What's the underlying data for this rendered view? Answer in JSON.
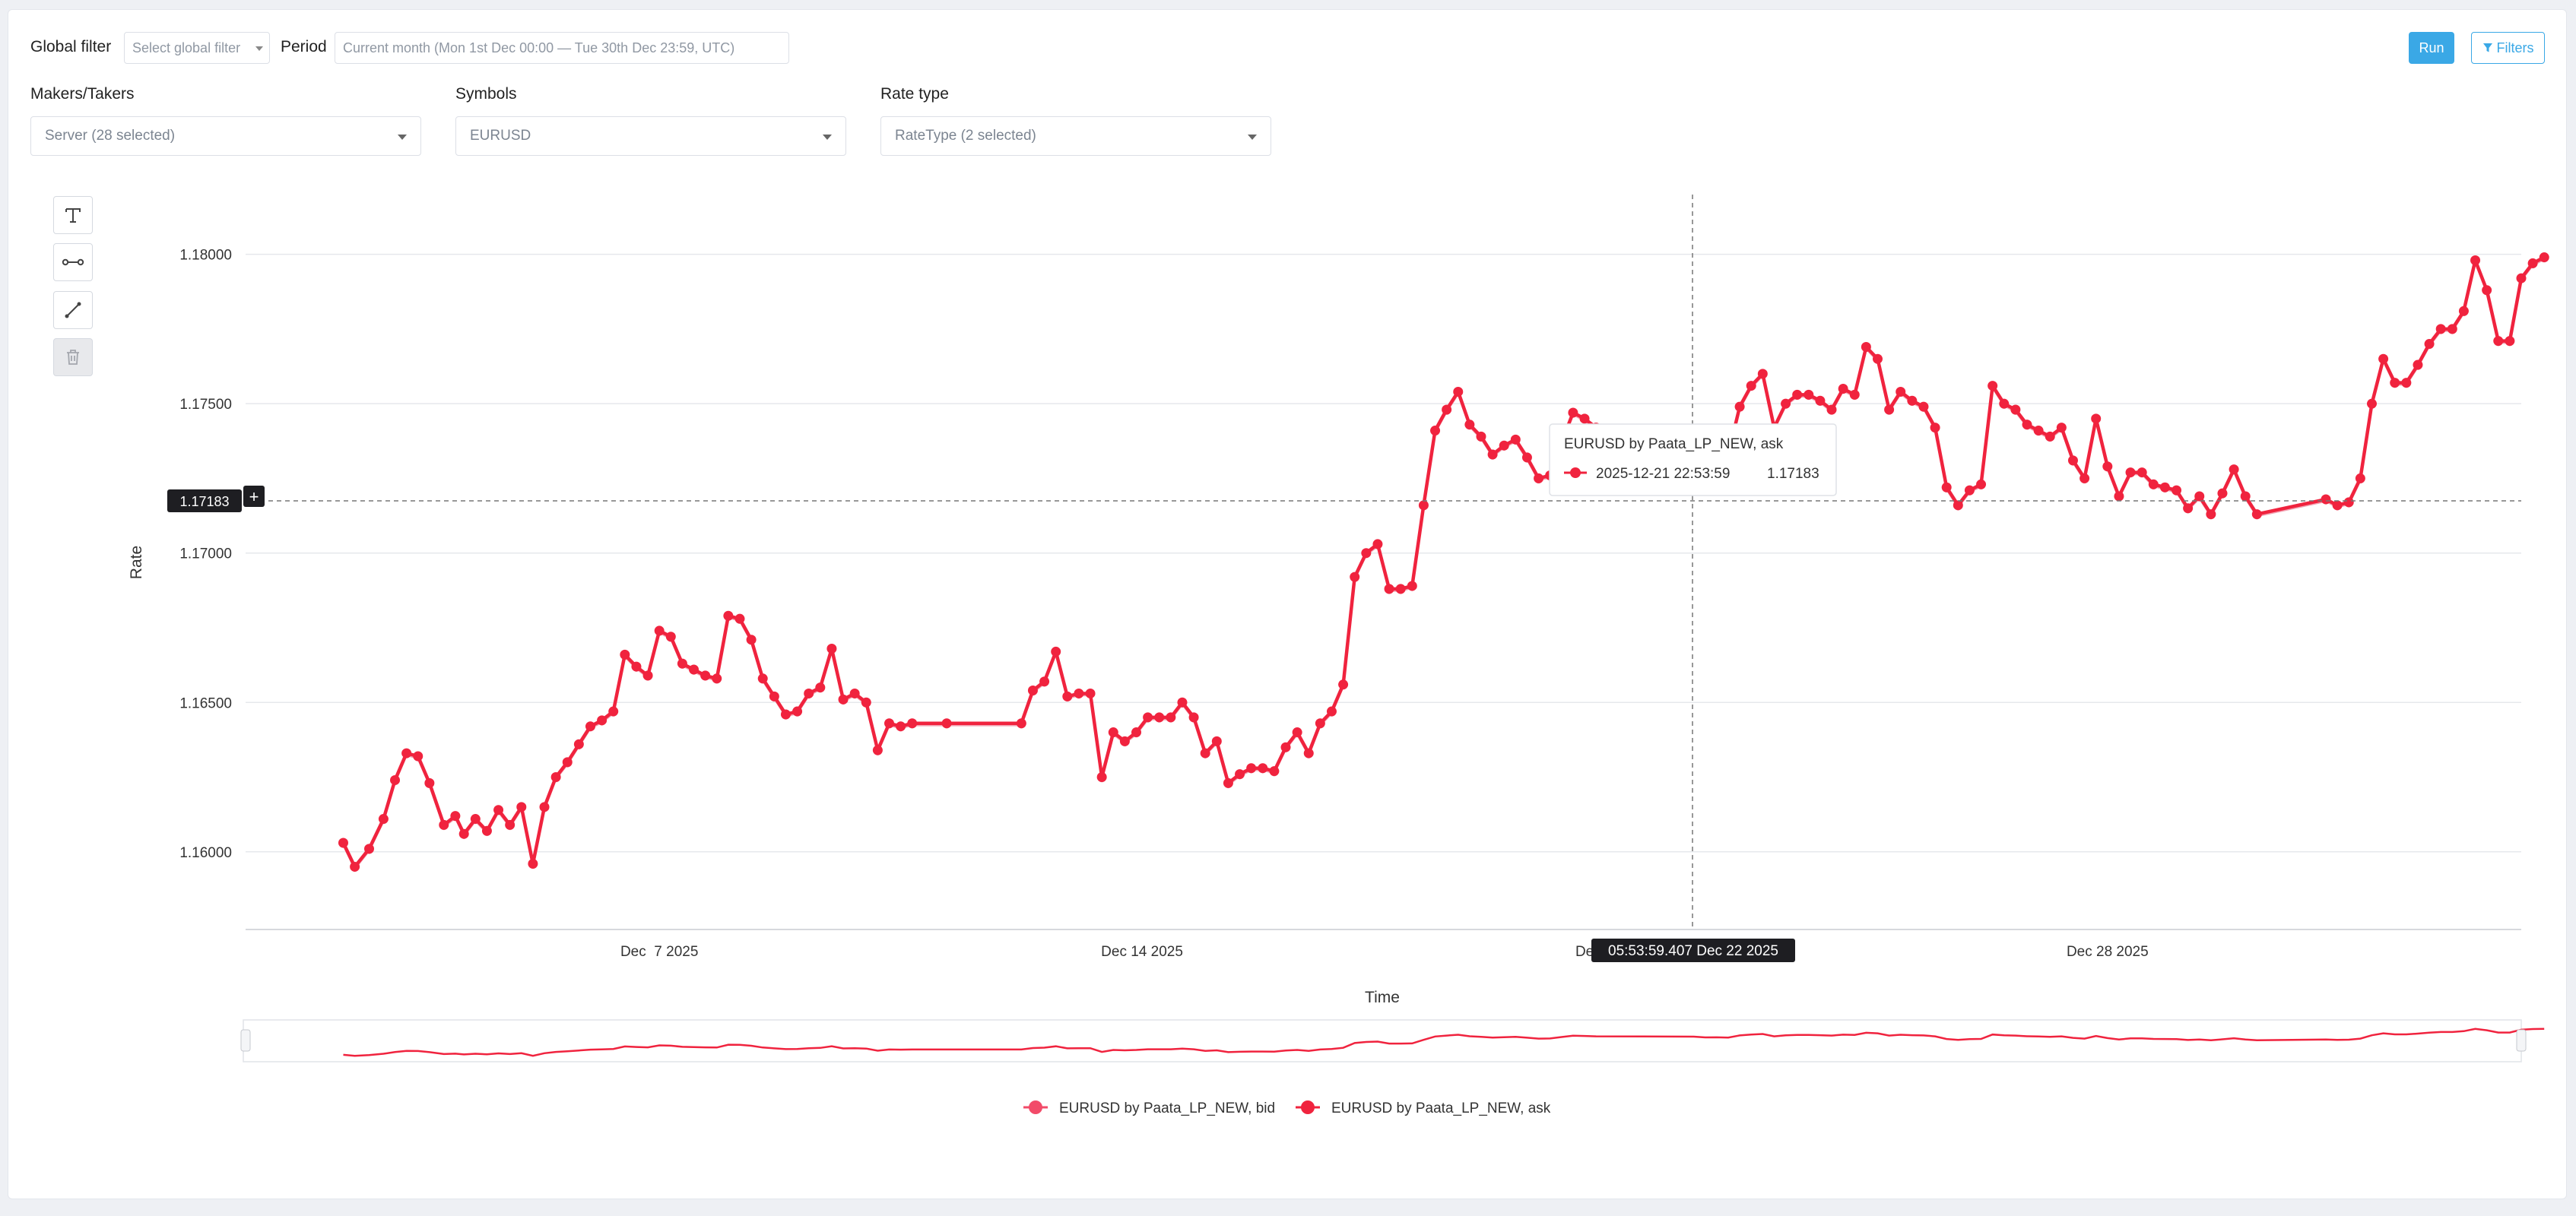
{
  "filters": {
    "global_filter_label": "Global filter",
    "global_filter_placeholder": "Select global filter",
    "period_label": "Period",
    "period_value": "Current month (Mon 1st Dec 00:00 — Tue 30th Dec 23:59, UTC)"
  },
  "actions": {
    "run_label": "Run",
    "filters_label": "Filters"
  },
  "selectors": [
    {
      "label": "Makers/Takers",
      "value": "Server (28 selected)"
    },
    {
      "label": "Symbols",
      "value": "EURUSD"
    },
    {
      "label": "Rate type",
      "value": "RateType (2 selected)"
    }
  ],
  "toolbar": [
    "text-tool-icon",
    "line-segment-icon",
    "arrow-line-icon",
    "trash-icon"
  ],
  "crosshair": {
    "y_value_label": "1.17183",
    "x_value_label": "05:53:59.407 Dec 22 2025",
    "plus_label": "+"
  },
  "tooltip": {
    "title": "EURUSD by Paata_LP_NEW, ask",
    "time": "2025-12-21 22:53:59",
    "value": "1.17183"
  },
  "chart_data": {
    "type": "line",
    "xlabel": "Time",
    "ylabel": "Rate",
    "x_ticks": [
      "Dec  7 2025",
      "Dec 14 2025",
      "Dec",
      "Dec 28 2025"
    ],
    "y_ticks": [
      "1.16000",
      "1.16500",
      "1.17000",
      "1.17500",
      "1.18000"
    ],
    "ylim": [
      1.1574,
      1.182
    ],
    "xlim": [
      "2025-12-01",
      "2026-01-03"
    ],
    "legend": [
      "EURUSD by Paata_LP_NEW, bid",
      "EURUSD by Paata_LP_NEW, ask"
    ],
    "legend_position": "bottom",
    "grid": "horizontal",
    "colors": {
      "bid": "#f2a3b3",
      "ask": "#f0233e",
      "bid_legend": "#f24b69"
    },
    "series": [
      {
        "name": "EURUSD by Paata_LP_NEW, ask",
        "points": [
          [
            "2025-12-02 10:00",
            1.1603
          ],
          [
            "2025-12-02 14:00",
            1.1595
          ],
          [
            "2025-12-02 19:00",
            1.1601
          ],
          [
            "2025-12-03 00:00",
            1.1611
          ],
          [
            "2025-12-03 04:00",
            1.1624
          ],
          [
            "2025-12-03 08:00",
            1.1633
          ],
          [
            "2025-12-03 12:00",
            1.1632
          ],
          [
            "2025-12-03 16:00",
            1.1623
          ],
          [
            "2025-12-03 21:00",
            1.1609
          ],
          [
            "2025-12-04 01:00",
            1.1612
          ],
          [
            "2025-12-04 04:00",
            1.1606
          ],
          [
            "2025-12-04 08:00",
            1.1611
          ],
          [
            "2025-12-04 12:00",
            1.1607
          ],
          [
            "2025-12-04 16:00",
            1.1614
          ],
          [
            "2025-12-04 20:00",
            1.1609
          ],
          [
            "2025-12-05 00:00",
            1.1615
          ],
          [
            "2025-12-05 04:00",
            1.1596
          ],
          [
            "2025-12-05 08:00",
            1.1615
          ],
          [
            "2025-12-05 12:00",
            1.1625
          ],
          [
            "2025-12-05 16:00",
            1.163
          ],
          [
            "2025-12-05 20:00",
            1.1636
          ],
          [
            "2025-12-06 00:00",
            1.1642
          ],
          [
            "2025-12-06 04:00",
            1.1644
          ],
          [
            "2025-12-06 08:00",
            1.1647
          ],
          [
            "2025-12-06 12:00",
            1.1666
          ],
          [
            "2025-12-06 16:00",
            1.1662
          ],
          [
            "2025-12-06 20:00",
            1.1659
          ],
          [
            "2025-12-07 00:00",
            1.1674
          ],
          [
            "2025-12-07 04:00",
            1.1672
          ],
          [
            "2025-12-07 08:00",
            1.1663
          ],
          [
            "2025-12-07 12:00",
            1.1661
          ],
          [
            "2025-12-07 16:00",
            1.1659
          ],
          [
            "2025-12-07 20:00",
            1.1658
          ],
          [
            "2025-12-08 00:00",
            1.1679
          ],
          [
            "2025-12-08 04:00",
            1.1678
          ],
          [
            "2025-12-08 08:00",
            1.1671
          ],
          [
            "2025-12-08 12:00",
            1.1658
          ],
          [
            "2025-12-08 16:00",
            1.1652
          ],
          [
            "2025-12-08 20:00",
            1.1646
          ],
          [
            "2025-12-09 00:00",
            1.1647
          ],
          [
            "2025-12-09 04:00",
            1.1653
          ],
          [
            "2025-12-09 08:00",
            1.1655
          ],
          [
            "2025-12-09 12:00",
            1.1668
          ],
          [
            "2025-12-09 16:00",
            1.1651
          ],
          [
            "2025-12-09 20:00",
            1.1653
          ],
          [
            "2025-12-10 00:00",
            1.165
          ],
          [
            "2025-12-10 04:00",
            1.1634
          ],
          [
            "2025-12-10 08:00",
            1.1643
          ],
          [
            "2025-12-10 12:00",
            1.1642
          ],
          [
            "2025-12-10 16:00",
            1.1643
          ],
          [
            "2025-12-11 04:00",
            1.1643
          ],
          [
            "2025-12-12 06:00",
            1.1643
          ],
          [
            "2025-12-12 10:00",
            1.1654
          ],
          [
            "2025-12-12 14:00",
            1.1657
          ],
          [
            "2025-12-12 18:00",
            1.1667
          ],
          [
            "2025-12-12 22:00",
            1.1652
          ],
          [
            "2025-12-13 02:00",
            1.1653
          ],
          [
            "2025-12-13 06:00",
            1.1653
          ],
          [
            "2025-12-13 10:00",
            1.1625
          ],
          [
            "2025-12-13 14:00",
            1.164
          ],
          [
            "2025-12-13 18:00",
            1.1637
          ],
          [
            "2025-12-13 22:00",
            1.164
          ],
          [
            "2025-12-14 02:00",
            1.1645
          ],
          [
            "2025-12-14 06:00",
            1.1645
          ],
          [
            "2025-12-14 10:00",
            1.1645
          ],
          [
            "2025-12-14 14:00",
            1.165
          ],
          [
            "2025-12-14 18:00",
            1.1645
          ],
          [
            "2025-12-14 22:00",
            1.1633
          ],
          [
            "2025-12-15 02:00",
            1.1637
          ],
          [
            "2025-12-15 06:00",
            1.1623
          ],
          [
            "2025-12-15 10:00",
            1.1626
          ],
          [
            "2025-12-15 14:00",
            1.1628
          ],
          [
            "2025-12-15 18:00",
            1.1628
          ],
          [
            "2025-12-15 22:00",
            1.1627
          ],
          [
            "2025-12-16 02:00",
            1.1635
          ],
          [
            "2025-12-16 06:00",
            1.164
          ],
          [
            "2025-12-16 10:00",
            1.1633
          ],
          [
            "2025-12-16 14:00",
            1.1643
          ],
          [
            "2025-12-16 18:00",
            1.1647
          ],
          [
            "2025-12-16 22:00",
            1.1656
          ],
          [
            "2025-12-17 02:00",
            1.1692
          ],
          [
            "2025-12-17 06:00",
            1.17
          ],
          [
            "2025-12-17 10:00",
            1.1703
          ],
          [
            "2025-12-17 14:00",
            1.1688
          ],
          [
            "2025-12-17 18:00",
            1.1688
          ],
          [
            "2025-12-17 22:00",
            1.1689
          ],
          [
            "2025-12-18 02:00",
            1.1716
          ],
          [
            "2025-12-18 06:00",
            1.1741
          ],
          [
            "2025-12-18 10:00",
            1.1748
          ],
          [
            "2025-12-18 14:00",
            1.1754
          ],
          [
            "2025-12-18 18:00",
            1.1743
          ],
          [
            "2025-12-18 22:00",
            1.1739
          ],
          [
            "2025-12-19 02:00",
            1.1733
          ],
          [
            "2025-12-19 06:00",
            1.1736
          ],
          [
            "2025-12-19 10:00",
            1.1738
          ],
          [
            "2025-12-19 14:00",
            1.1732
          ],
          [
            "2025-12-19 18:00",
            1.1725
          ],
          [
            "2025-12-19 22:00",
            1.1726
          ],
          [
            "2025-12-20 02:00",
            1.1737
          ],
          [
            "2025-12-20 06:00",
            1.1747
          ],
          [
            "2025-12-20 10:00",
            1.1745
          ],
          [
            "2025-12-20 14:00",
            1.1742
          ],
          [
            "2025-12-22 00:00",
            1.174
          ],
          [
            "2025-12-22 04:00",
            1.1734
          ],
          [
            "2025-12-22 08:00",
            1.1735
          ],
          [
            "2025-12-22 12:00",
            1.1733
          ],
          [
            "2025-12-22 16:00",
            1.1749
          ],
          [
            "2025-12-22 20:00",
            1.1756
          ],
          [
            "2025-12-23 00:00",
            1.176
          ],
          [
            "2025-12-23 04:00",
            1.1742
          ],
          [
            "2025-12-23 08:00",
            1.175
          ],
          [
            "2025-12-23 12:00",
            1.1753
          ],
          [
            "2025-12-23 16:00",
            1.1753
          ],
          [
            "2025-12-23 20:00",
            1.1751
          ],
          [
            "2025-12-24 00:00",
            1.1748
          ],
          [
            "2025-12-24 04:00",
            1.1755
          ],
          [
            "2025-12-24 08:00",
            1.1753
          ],
          [
            "2025-12-24 12:00",
            1.1769
          ],
          [
            "2025-12-24 16:00",
            1.1765
          ],
          [
            "2025-12-24 20:00",
            1.1748
          ],
          [
            "2025-12-25 00:00",
            1.1754
          ],
          [
            "2025-12-25 04:00",
            1.1751
          ],
          [
            "2025-12-25 08:00",
            1.1749
          ],
          [
            "2025-12-25 12:00",
            1.1742
          ],
          [
            "2025-12-25 16:00",
            1.1722
          ],
          [
            "2025-12-25 20:00",
            1.1716
          ],
          [
            "2025-12-26 00:00",
            1.1721
          ],
          [
            "2025-12-26 04:00",
            1.1723
          ],
          [
            "2025-12-26 08:00",
            1.1756
          ],
          [
            "2025-12-26 12:00",
            1.175
          ],
          [
            "2025-12-26 16:00",
            1.1748
          ],
          [
            "2025-12-26 20:00",
            1.1743
          ],
          [
            "2025-12-27 00:00",
            1.1741
          ],
          [
            "2025-12-27 04:00",
            1.1739
          ],
          [
            "2025-12-27 08:00",
            1.1742
          ],
          [
            "2025-12-27 12:00",
            1.1731
          ],
          [
            "2025-12-27 16:00",
            1.1725
          ],
          [
            "2025-12-27 20:00",
            1.1745
          ],
          [
            "2025-12-28 00:00",
            1.1729
          ],
          [
            "2025-12-28 04:00",
            1.1719
          ],
          [
            "2025-12-28 08:00",
            1.1727
          ],
          [
            "2025-12-28 12:00",
            1.1727
          ],
          [
            "2025-12-28 16:00",
            1.1723
          ],
          [
            "2025-12-28 20:00",
            1.1722
          ],
          [
            "2025-12-29 00:00",
            1.1721
          ],
          [
            "2025-12-29 04:00",
            1.1715
          ],
          [
            "2025-12-29 08:00",
            1.1719
          ],
          [
            "2025-12-29 12:00",
            1.1713
          ],
          [
            "2025-12-29 16:00",
            1.172
          ],
          [
            "2025-12-29 20:00",
            1.1728
          ],
          [
            "2025-12-30 00:00",
            1.1719
          ],
          [
            "2025-12-30 04:00",
            1.1713
          ],
          [
            "2025-12-31 04:00",
            1.1718
          ],
          [
            "2025-12-31 08:00",
            1.1716
          ],
          [
            "2025-12-31 12:00",
            1.1717
          ],
          [
            "2025-12-31 16:00",
            1.1725
          ],
          [
            "2025-12-31 20:00",
            1.175
          ],
          [
            "2026-01-01 00:00",
            1.1765
          ],
          [
            "2026-01-01 04:00",
            1.1757
          ],
          [
            "2026-01-01 08:00",
            1.1757
          ],
          [
            "2026-01-01 12:00",
            1.1763
          ],
          [
            "2026-01-01 16:00",
            1.177
          ],
          [
            "2026-01-01 20:00",
            1.1775
          ],
          [
            "2026-01-02 00:00",
            1.1775
          ],
          [
            "2026-01-02 04:00",
            1.1781
          ],
          [
            "2026-01-02 08:00",
            1.1798
          ],
          [
            "2026-01-02 12:00",
            1.1788
          ],
          [
            "2026-01-02 16:00",
            1.1771
          ],
          [
            "2026-01-02 20:00",
            1.1771
          ],
          [
            "2026-01-03 00:00",
            1.1792
          ],
          [
            "2026-01-03 04:00",
            1.1797
          ],
          [
            "2026-01-03 08:00",
            1.1799
          ]
        ]
      }
    ]
  }
}
